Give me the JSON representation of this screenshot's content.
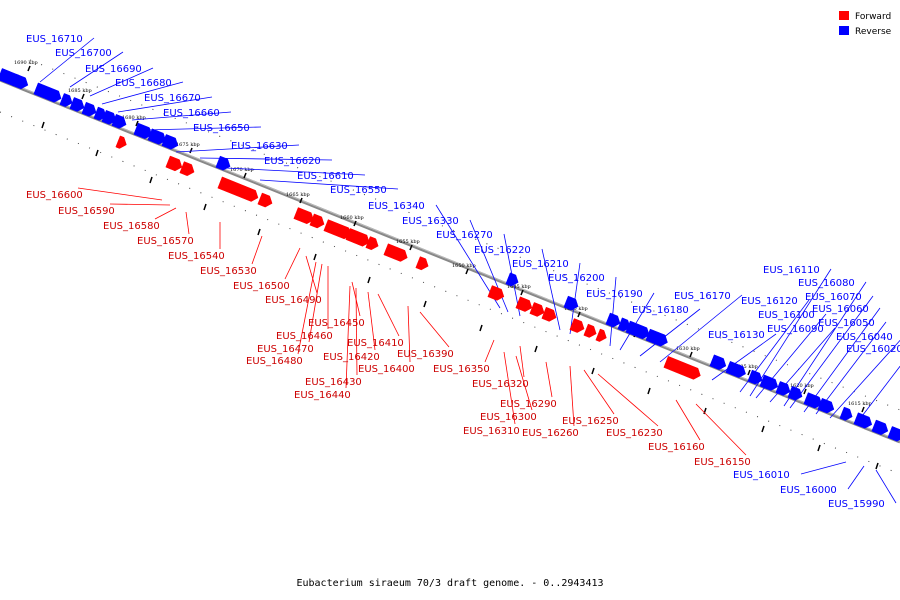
{
  "caption": "Eubacterium siraeum 70/3 draft genome. - 0..2943413",
  "colors": {
    "forward": "#ff0000",
    "reverse": "#0000ff",
    "axis": "#888888",
    "tick": "#000000"
  },
  "legend": [
    {
      "key": "forward",
      "label": "Forward"
    },
    {
      "key": "reverse",
      "label": "Reverse"
    }
  ],
  "ticks": [
    "1690 kbp",
    "1685 kbp",
    "1680 kbp",
    "1675 kbp",
    "1670 kbp",
    "1665 kbp",
    "1660 kbp",
    "1655 kbp",
    "1650 kbp",
    "1645 kbp",
    "1640 kbp",
    "1635 kbp",
    "1630 kbp",
    "1625 kbp",
    "1620 kbp",
    "1615 kbp"
  ],
  "reverse_genes": [
    "EUS_16710",
    "EUS_16700",
    "EUS_16690",
    "EUS_16680",
    "EUS_16670",
    "EUS_16660",
    "EUS_16650",
    "EUS_16630",
    "EUS_16620",
    "EUS_16610",
    "EUS_16550",
    "EUS_16340",
    "EUS_16330",
    "EUS_16270",
    "EUS_16220",
    "EUS_16210",
    "EUS_16200",
    "EUS_16190",
    "EUS_16180",
    "EUS_16170",
    "EUS_16130",
    "EUS_16120",
    "EUS_16110",
    "EUS_16100",
    "EUS_16090",
    "EUS_16080",
    "EUS_16070",
    "EUS_16060",
    "EUS_16050",
    "EUS_16040",
    "EUS_16020",
    "EUS_16010",
    "EUS_16000",
    "EUS_15990"
  ],
  "forward_genes": [
    "EUS_16600",
    "EUS_16590",
    "EUS_16580",
    "EUS_16570",
    "EUS_16540",
    "EUS_16530",
    "EUS_16500",
    "EUS_16490",
    "EUS_16480",
    "EUS_16470",
    "EUS_16460",
    "EUS_16450",
    "EUS_16440",
    "EUS_16430",
    "EUS_16420",
    "EUS_16410",
    "EUS_16400",
    "EUS_16390",
    "EUS_16350",
    "EUS_16320",
    "EUS_16310",
    "EUS_16300",
    "EUS_16290",
    "EUS_16260",
    "EUS_16250",
    "EUS_16230",
    "EUS_16160",
    "EUS_16150"
  ]
}
